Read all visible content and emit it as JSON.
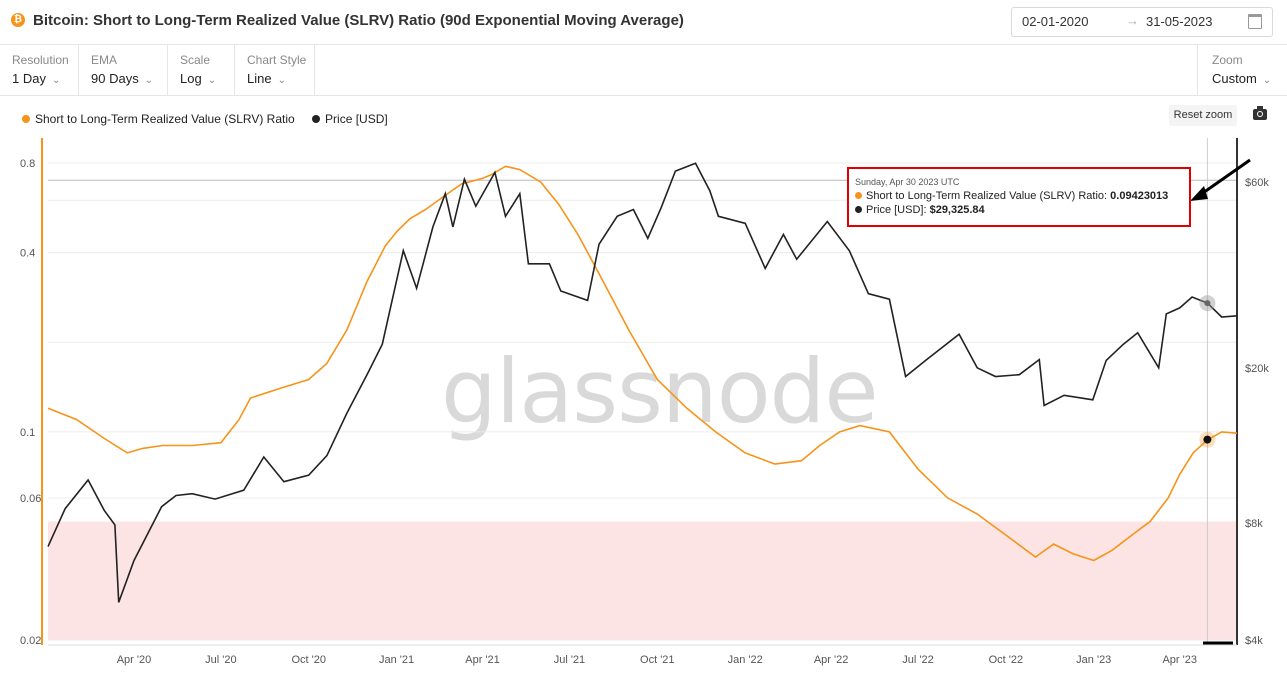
{
  "header": {
    "title": "Bitcoin: Short to Long-Term Realized Value (SLRV) Ratio (90d Exponential Moving Average)",
    "date_from": "02-01-2020",
    "date_arrow": "→",
    "date_to": "31-05-2023",
    "coin_symbol": "₿"
  },
  "toolbar": {
    "resolution": {
      "label": "Resolution",
      "value": "1 Day"
    },
    "ema": {
      "label": "EMA",
      "value": "90 Days"
    },
    "scale": {
      "label": "Scale",
      "value": "Log"
    },
    "chart_style": {
      "label": "Chart Style",
      "value": "Line"
    },
    "zoom": {
      "label": "Zoom",
      "value": "Custom"
    }
  },
  "legend": {
    "slrv": "Short to Long-Term Realized Value (SLRV) Ratio",
    "price": "Price [USD]"
  },
  "reset_zoom": "Reset zoom",
  "watermark": "glassnode",
  "tooltip": {
    "date": "Sunday, Apr 30 2023 UTC",
    "slrv_label": "Short to Long-Term Realized Value (SLRV) Ratio:",
    "slrv_value": "0.09423013",
    "price_label": "Price [USD]:",
    "price_value": "$29,325.84"
  },
  "colors": {
    "slrv": "#f7931a",
    "price": "#222222",
    "band": "#fce4e4",
    "annotation": "#e00000"
  },
  "chart_data": {
    "type": "line",
    "title": "Bitcoin: Short to Long-Term Realized Value (SLRV) Ratio (90d Exponential Moving Average)",
    "x_ticks": [
      "Apr '20",
      "Jul '20",
      "Oct '20",
      "Jan '21",
      "Apr '21",
      "Jul '21",
      "Oct '21",
      "Jan '22",
      "Apr '22",
      "Jul '22",
      "Oct '22",
      "Jan '23",
      "Apr '23"
    ],
    "x_tick_dates": [
      "2020-04-01",
      "2020-07-01",
      "2020-10-01",
      "2021-01-01",
      "2021-04-01",
      "2021-07-01",
      "2021-10-01",
      "2022-01-01",
      "2022-04-01",
      "2022-07-01",
      "2022-10-01",
      "2023-01-01",
      "2023-04-01"
    ],
    "left_axis": {
      "scale": "log",
      "ticks": [
        0.02,
        0.06,
        0.1,
        0.4,
        0.8
      ]
    },
    "right_axis": {
      "scale": "log",
      "ticks": [
        "$4k",
        "$8k",
        "$20k",
        "$60k"
      ],
      "tick_values": [
        4000,
        8000,
        20000,
        60000
      ]
    },
    "x_range": [
      "2020-01-02",
      "2023-05-31"
    ],
    "reference_band": {
      "axis": "left",
      "from": 0.02,
      "to": 0.05
    },
    "reference_line": {
      "axis": "left",
      "value": 0.7
    },
    "series": [
      {
        "name": "Short to Long-Term Realized Value (SLRV) Ratio",
        "axis": "left",
        "x": [
          "2020-01-02",
          "2020-02-01",
          "2020-03-01",
          "2020-03-25",
          "2020-04-10",
          "2020-05-01",
          "2020-06-01",
          "2020-07-01",
          "2020-07-20",
          "2020-08-01",
          "2020-09-01",
          "2020-10-01",
          "2020-10-20",
          "2020-11-10",
          "2020-12-01",
          "2020-12-20",
          "2021-01-01",
          "2021-01-15",
          "2021-02-01",
          "2021-02-20",
          "2021-03-10",
          "2021-04-01",
          "2021-04-10",
          "2021-04-25",
          "2021-05-10",
          "2021-06-01",
          "2021-06-20",
          "2021-07-10",
          "2021-08-01",
          "2021-09-01",
          "2021-10-01",
          "2021-11-01",
          "2021-12-01",
          "2022-01-01",
          "2022-02-01",
          "2022-03-01",
          "2022-03-20",
          "2022-04-10",
          "2022-05-01",
          "2022-06-01",
          "2022-07-01",
          "2022-08-01",
          "2022-09-01",
          "2022-10-01",
          "2022-11-01",
          "2022-11-20",
          "2022-12-10",
          "2023-01-01",
          "2023-01-20",
          "2023-02-10",
          "2023-03-01",
          "2023-03-20",
          "2023-04-01",
          "2023-04-15",
          "2023-04-30",
          "2023-05-15",
          "2023-05-31"
        ],
        "y": [
          0.12,
          0.11,
          0.095,
          0.085,
          0.088,
          0.09,
          0.09,
          0.092,
          0.11,
          0.13,
          0.14,
          0.15,
          0.17,
          0.22,
          0.32,
          0.42,
          0.47,
          0.52,
          0.56,
          0.62,
          0.68,
          0.71,
          0.73,
          0.78,
          0.76,
          0.69,
          0.58,
          0.46,
          0.34,
          0.22,
          0.15,
          0.12,
          0.1,
          0.085,
          0.078,
          0.08,
          0.09,
          0.1,
          0.105,
          0.1,
          0.075,
          0.06,
          0.053,
          0.045,
          0.038,
          0.042,
          0.039,
          0.037,
          0.04,
          0.045,
          0.05,
          0.06,
          0.072,
          0.085,
          0.094,
          0.1,
          0.099
        ]
      },
      {
        "name": "Price [USD]",
        "axis": "right",
        "x": [
          "2020-01-02",
          "2020-01-20",
          "2020-02-13",
          "2020-03-01",
          "2020-03-12",
          "2020-03-16",
          "2020-04-01",
          "2020-04-30",
          "2020-05-15",
          "2020-06-01",
          "2020-06-25",
          "2020-07-25",
          "2020-08-15",
          "2020-09-05",
          "2020-10-01",
          "2020-10-20",
          "2020-11-10",
          "2020-12-01",
          "2020-12-17",
          "2021-01-08",
          "2021-01-22",
          "2021-02-08",
          "2021-02-21",
          "2021-03-01",
          "2021-03-13",
          "2021-03-25",
          "2021-04-14",
          "2021-04-25",
          "2021-05-10",
          "2021-05-19",
          "2021-06-10",
          "2021-06-22",
          "2021-07-20",
          "2021-08-01",
          "2021-08-20",
          "2021-09-06",
          "2021-09-21",
          "2021-10-05",
          "2021-10-20",
          "2021-11-10",
          "2021-11-25",
          "2021-12-04",
          "2022-01-01",
          "2022-01-22",
          "2022-02-10",
          "2022-02-24",
          "2022-03-28",
          "2022-04-20",
          "2022-05-10",
          "2022-06-01",
          "2022-06-18",
          "2022-07-10",
          "2022-08-13",
          "2022-09-01",
          "2022-09-20",
          "2022-10-15",
          "2022-11-05",
          "2022-11-10",
          "2022-12-01",
          "2022-12-31",
          "2023-01-14",
          "2023-02-01",
          "2023-02-16",
          "2023-03-10",
          "2023-03-18",
          "2023-04-01",
          "2023-04-14",
          "2023-04-30",
          "2023-05-15",
          "2023-05-31"
        ],
        "y": [
          6950,
          8700,
          10300,
          8600,
          7900,
          5000,
          6400,
          8800,
          9400,
          9500,
          9200,
          9700,
          11800,
          10200,
          10600,
          11900,
          15300,
          19200,
          23000,
          40000,
          32000,
          46000,
          56000,
          46000,
          61000,
          52000,
          63500,
          49000,
          56000,
          37000,
          37000,
          31500,
          29800,
          41500,
          49000,
          51000,
          43000,
          51500,
          64000,
          67000,
          57000,
          49000,
          47000,
          36000,
          44000,
          38000,
          47500,
          40000,
          31000,
          30000,
          19000,
          21000,
          24400,
          20000,
          19000,
          19200,
          21000,
          16000,
          17000,
          16550,
          20900,
          23000,
          24600,
          20000,
          27500,
          28500,
          30400,
          29325,
          27000,
          27200
        ]
      }
    ],
    "highlight_point": {
      "date": "2023-04-30",
      "slrv": 0.09423013,
      "price": 29325.84
    },
    "grid": "horizontal"
  }
}
